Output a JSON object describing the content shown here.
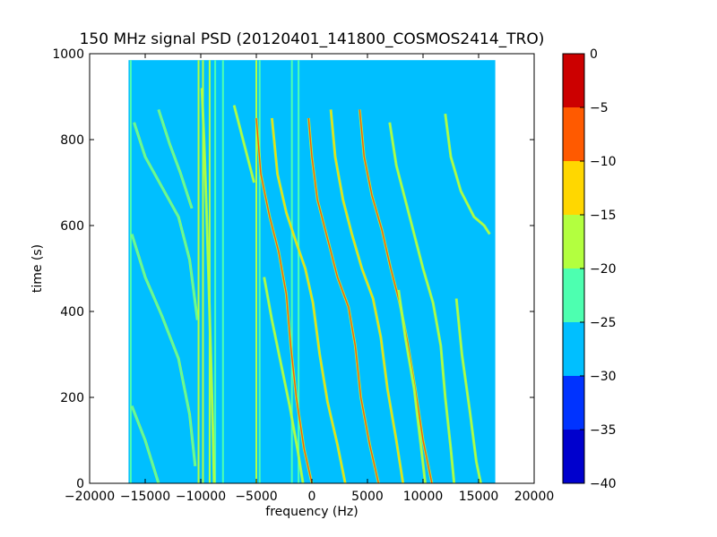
{
  "chart_data": {
    "type": "heatmap",
    "title": "150 MHz signal PSD (20120401_141800_COSMOS2414_TRO)",
    "xlabel": "frequency (Hz)",
    "ylabel": "time (s)",
    "xlim": [
      -20000,
      20000
    ],
    "ylim": [
      0,
      1000
    ],
    "x_ticks": [
      -20000,
      -15000,
      -10000,
      -5000,
      0,
      5000,
      10000,
      15000,
      20000
    ],
    "x_tick_labels": [
      "−20000",
      "−15000",
      "−10000",
      "−5000",
      "0",
      "5000",
      "10000",
      "15000",
      "20000"
    ],
    "y_ticks": [
      0,
      200,
      400,
      600,
      800,
      1000
    ],
    "y_tick_labels": [
      "0",
      "200",
      "400",
      "600",
      "800",
      "1000"
    ],
    "data_extent": {
      "x": [
        -16500,
        16500
      ],
      "y": [
        0,
        985
      ]
    },
    "background_level": -27.5,
    "colorbar": {
      "levels": [
        -40,
        -35,
        -30,
        -25,
        -20,
        -15,
        -10,
        -5,
        0
      ],
      "tick_labels": [
        "−40",
        "−35",
        "−30",
        "−25",
        "−20",
        "−15",
        "−10",
        "−5",
        "0"
      ],
      "colors": [
        "#0000cd",
        "#0033ff",
        "#00bfff",
        "#4dffb0",
        "#b3ff3f",
        "#ffd700",
        "#ff5a00",
        "#cc0000"
      ]
    },
    "vertical_lines": [
      {
        "x": -16300,
        "y": [
          0,
          985
        ],
        "level": -22
      },
      {
        "x": -10200,
        "y": [
          0,
          985
        ],
        "level": -17
      },
      {
        "x": -9800,
        "y": [
          0,
          985
        ],
        "level": -17
      },
      {
        "x": -9200,
        "y": [
          0,
          985
        ],
        "level": -17
      },
      {
        "x": -8700,
        "y": [
          0,
          985
        ],
        "level": -22
      },
      {
        "x": -8000,
        "y": [
          0,
          985
        ],
        "level": -22
      },
      {
        "x": -5000,
        "y": [
          0,
          985
        ],
        "level": -17
      },
      {
        "x": -4700,
        "y": [
          0,
          985
        ],
        "level": -22
      },
      {
        "x": -1800,
        "y": [
          0,
          985
        ],
        "level": -22
      },
      {
        "x": -1200,
        "y": [
          0,
          985
        ],
        "level": -22
      }
    ],
    "tracks": [
      {
        "name": "",
        "level": -22,
        "points": [
          [
            -16000,
            840
          ],
          [
            -15000,
            760
          ],
          [
            -13500,
            690
          ],
          [
            -12000,
            620
          ],
          [
            -11000,
            520
          ],
          [
            -10300,
            380
          ]
        ]
      },
      {
        "name": "",
        "level": -22,
        "points": [
          [
            -16200,
            580
          ],
          [
            -15000,
            480
          ],
          [
            -13500,
            390
          ],
          [
            -12000,
            290
          ],
          [
            -11000,
            160
          ],
          [
            -10500,
            40
          ]
        ]
      },
      {
        "name": "",
        "level": -22,
        "points": [
          [
            -16200,
            180
          ],
          [
            -15000,
            100
          ],
          [
            -13800,
            0
          ]
        ]
      },
      {
        "name": "",
        "level": -22,
        "points": [
          [
            -13800,
            870
          ],
          [
            -12800,
            790
          ],
          [
            -11800,
            720
          ],
          [
            -10800,
            640
          ]
        ]
      },
      {
        "name": "",
        "level": -17,
        "points": [
          [
            -9900,
            920
          ],
          [
            -9700,
            800
          ],
          [
            -9500,
            650
          ],
          [
            -9300,
            480
          ],
          [
            -9100,
            300
          ],
          [
            -8900,
            120
          ],
          [
            -8800,
            0
          ]
        ]
      },
      {
        "name": "",
        "level": -10,
        "points": [
          [
            -5000,
            850
          ],
          [
            -4600,
            720
          ],
          [
            -3800,
            620
          ],
          [
            -3000,
            540
          ],
          [
            -2300,
            440
          ],
          [
            -1900,
            320
          ],
          [
            -1400,
            200
          ],
          [
            -700,
            80
          ],
          [
            0,
            0
          ]
        ]
      },
      {
        "name": "",
        "level": -12,
        "points": [
          [
            -3600,
            850
          ],
          [
            -3100,
            720
          ],
          [
            -2300,
            630
          ],
          [
            -1400,
            560
          ],
          [
            -600,
            500
          ],
          [
            100,
            420
          ],
          [
            700,
            300
          ],
          [
            1400,
            190
          ],
          [
            2300,
            90
          ],
          [
            3000,
            0
          ]
        ]
      },
      {
        "name": "",
        "level": -7,
        "points": [
          [
            -300,
            850
          ],
          [
            0,
            760
          ],
          [
            500,
            660
          ],
          [
            1400,
            570
          ],
          [
            2300,
            480
          ],
          [
            3300,
            410
          ],
          [
            3900,
            320
          ],
          [
            4400,
            200
          ],
          [
            5200,
            90
          ],
          [
            6000,
            0
          ]
        ]
      },
      {
        "name": "",
        "level": -12,
        "points": [
          [
            1700,
            870
          ],
          [
            2100,
            760
          ],
          [
            2800,
            660
          ],
          [
            3600,
            580
          ],
          [
            4500,
            500
          ],
          [
            5500,
            430
          ],
          [
            6200,
            340
          ],
          [
            6800,
            220
          ],
          [
            7600,
            100
          ],
          [
            8200,
            0
          ]
        ]
      },
      {
        "name": "",
        "level": -10,
        "points": [
          [
            4300,
            870
          ],
          [
            4700,
            760
          ],
          [
            5400,
            670
          ],
          [
            6300,
            590
          ],
          [
            7100,
            500
          ],
          [
            7900,
            420
          ],
          [
            8600,
            330
          ],
          [
            9300,
            220
          ],
          [
            10000,
            100
          ],
          [
            10800,
            0
          ]
        ]
      },
      {
        "name": "",
        "level": -17,
        "points": [
          [
            -4300,
            480
          ],
          [
            -3600,
            380
          ],
          [
            -2800,
            280
          ],
          [
            -2000,
            180
          ],
          [
            -1300,
            80
          ],
          [
            -800,
            0
          ]
        ]
      },
      {
        "name": "",
        "level": -17,
        "points": [
          [
            -7000,
            880
          ],
          [
            -6000,
            780
          ],
          [
            -5200,
            700
          ]
        ]
      },
      {
        "name": "",
        "level": -20,
        "points": [
          [
            7000,
            840
          ],
          [
            7600,
            740
          ],
          [
            8400,
            660
          ],
          [
            9200,
            580
          ],
          [
            10000,
            500
          ],
          [
            10900,
            420
          ],
          [
            11600,
            320
          ],
          [
            12000,
            200
          ],
          [
            12500,
            80
          ],
          [
            12800,
            0
          ]
        ]
      },
      {
        "name": "",
        "level": -20,
        "points": [
          [
            12000,
            860
          ],
          [
            12500,
            760
          ],
          [
            13400,
            680
          ],
          [
            14600,
            620
          ],
          [
            15500,
            600
          ],
          [
            16000,
            580
          ]
        ]
      },
      {
        "name": "",
        "level": -20,
        "points": [
          [
            13000,
            430
          ],
          [
            13500,
            300
          ],
          [
            14200,
            170
          ],
          [
            14800,
            50
          ],
          [
            15200,
            0
          ]
        ]
      },
      {
        "name": "",
        "level": -20,
        "points": [
          [
            7800,
            450
          ],
          [
            8400,
            340
          ],
          [
            9200,
            220
          ],
          [
            9800,
            90
          ],
          [
            10200,
            0
          ]
        ]
      }
    ]
  }
}
